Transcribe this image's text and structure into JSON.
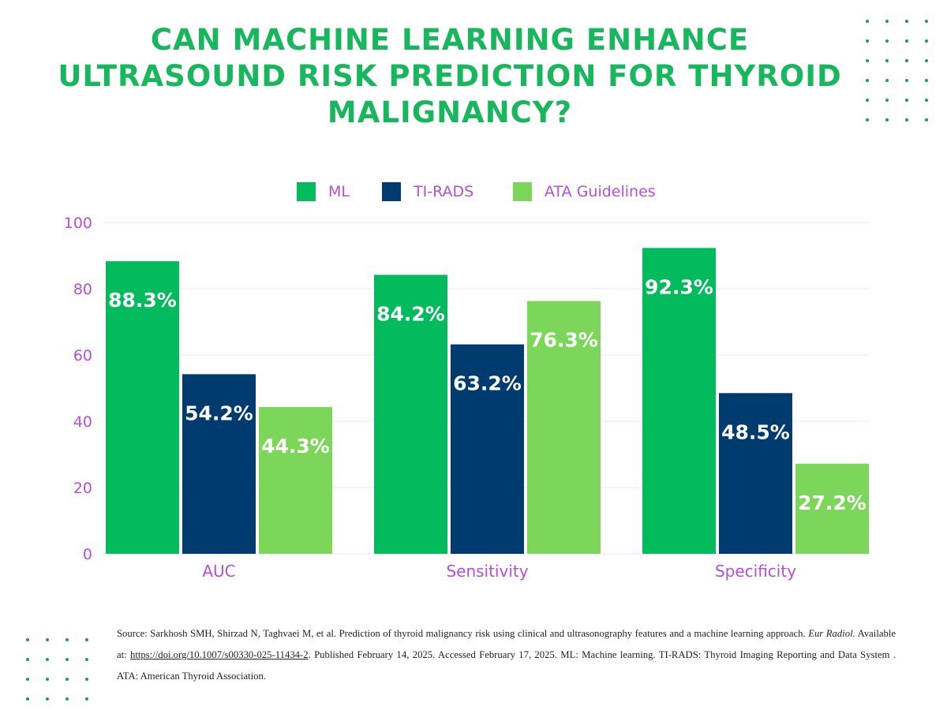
{
  "title_lines": [
    "CAN MACHINE LEARNING ENHANCE",
    "ULTRASOUND RISK PREDICTION FOR THYROID",
    "MALIGNANCY?"
  ],
  "colors": {
    "ml": "#03bb5d",
    "tirads": "#003b6f",
    "ata": "#7cd65a",
    "title": "#18b75d",
    "axis_text": "#b44fd8",
    "gridline": "#f1e2f6",
    "dots": "#1e8e99"
  },
  "chart_data": {
    "type": "bar",
    "categories": [
      "AUC",
      "Sensitivity",
      "Specificity"
    ],
    "series": [
      {
        "name": "ML",
        "values": [
          88.3,
          84.2,
          92.3
        ],
        "labels": [
          "88.3%",
          "84.2%",
          "92.3%"
        ]
      },
      {
        "name": "TI-RADS",
        "values": [
          54.2,
          63.2,
          48.5
        ],
        "labels": [
          "54.2%",
          "63.2%",
          "48.5%"
        ]
      },
      {
        "name": "ATA Guidelines",
        "values": [
          44.3,
          76.3,
          27.2
        ],
        "labels": [
          "44.3%",
          "76.3%",
          "27.2%"
        ]
      }
    ],
    "ylim": [
      0,
      100
    ],
    "yticks": [
      0,
      20,
      40,
      60,
      80,
      100
    ],
    "ytick_labels": [
      "0",
      "20",
      "40",
      "60",
      "80",
      "100"
    ],
    "grid": true,
    "legend_position": "top-center",
    "xlabel": "",
    "ylabel": ""
  },
  "source": {
    "prefix": "Source: Sarkhosh SMH, Shirzad N, Taghvaei M, et al. Prediction of thyroid malignancy risk using clinical and ultrasonography features and a machine learning approach.",
    "journal": "Eur Radiol.",
    "available": "Available at:",
    "link": "https://doi.org/10.1007/s00330-025-11434-2",
    "suffix": ". Published February 14, 2025. Accessed February 17, 2025. ML: Machine learning.  TI-RADS: Thyroid Imaging Reporting and Data System . ATA: American Thyroid Association."
  }
}
